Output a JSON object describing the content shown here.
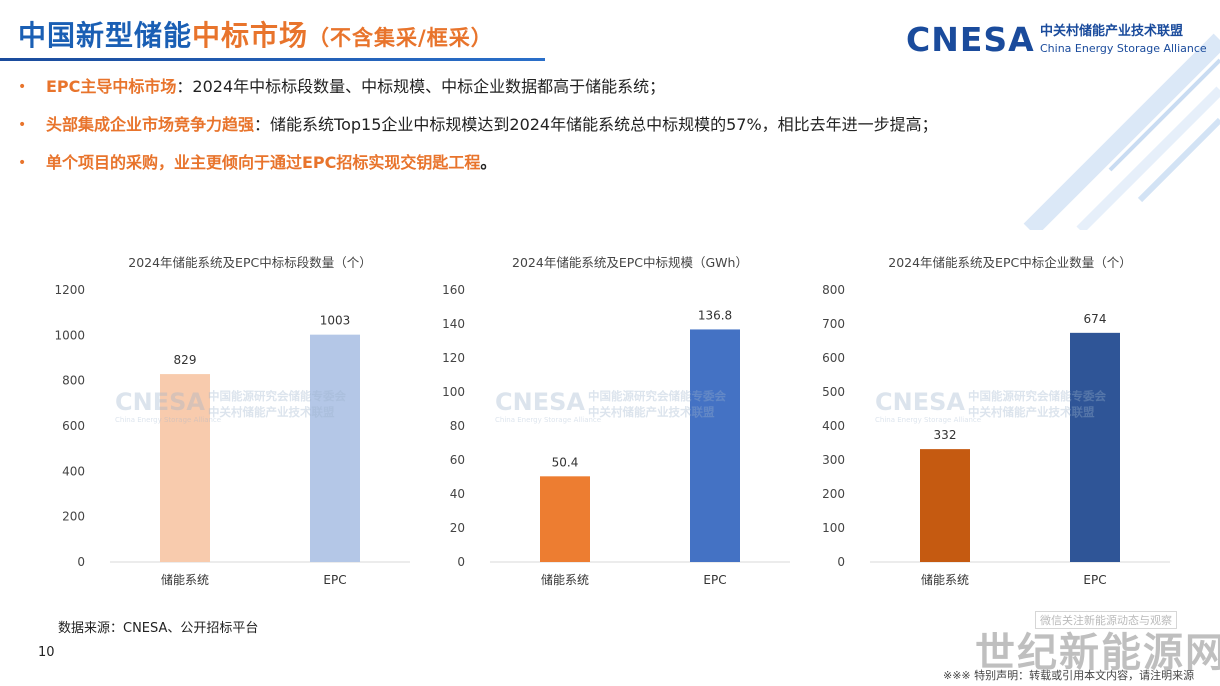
{
  "header": {
    "title_blue": "中国新型储能",
    "title_orange": "中标市场",
    "title_paren": "（不含集采/框采）"
  },
  "logo": {
    "main": "CNESA",
    "cn": "中关村储能产业技术联盟",
    "en": "China Energy Storage Alliance"
  },
  "bullets": [
    {
      "marker": "•",
      "highlight": "EPC主导中标市场",
      "sep": "：",
      "text": "2024年中标标段数量、中标规模、中标企业数据都高于储能系统；"
    },
    {
      "marker": "•",
      "highlight": "头部集成企业市场竞争力趋强",
      "sep": "：",
      "text": "储能系统Top15企业中标规模达到2024年储能系统总中标规模的57%，相比去年进一步提高；"
    },
    {
      "marker": "•",
      "highlight": "单个项目的采购，业主更倾向于通过EPC招标实现交钥匙工程",
      "sep": "",
      "text": "。"
    }
  ],
  "watermark": {
    "brand": "CNESA",
    "sub": "China Energy Storage Alliance",
    "cn1": "中国能源研究会储能专委会",
    "cn2": "中关村储能产业技术联盟"
  },
  "chart_data": [
    {
      "type": "bar",
      "title": "2024年储能系统及EPC中标标段数量（个）",
      "categories": [
        "储能系统",
        "EPC"
      ],
      "values": [
        829,
        1003
      ],
      "value_labels": [
        "829",
        "1003"
      ],
      "colors": [
        "#f8cbad",
        "#b4c7e7"
      ],
      "ylim": [
        0,
        1200
      ],
      "yticks": [
        0,
        200,
        400,
        600,
        800,
        1000,
        1200
      ],
      "grid": false,
      "xlabel": "",
      "ylabel": ""
    },
    {
      "type": "bar",
      "title": "2024年储能系统及EPC中标规模（GWh）",
      "categories": [
        "储能系统",
        "EPC"
      ],
      "values": [
        50.4,
        136.8
      ],
      "value_labels": [
        "50.4",
        "136.8"
      ],
      "colors": [
        "#ed7d31",
        "#4472c4"
      ],
      "ylim": [
        0,
        160
      ],
      "yticks": [
        0,
        20,
        40,
        60,
        80,
        100,
        120,
        140,
        160
      ],
      "grid": false,
      "xlabel": "",
      "ylabel": ""
    },
    {
      "type": "bar",
      "title": "2024年储能系统及EPC中标企业数量（个）",
      "categories": [
        "储能系统",
        "EPC"
      ],
      "values": [
        332,
        674
      ],
      "value_labels": [
        "332",
        "674"
      ],
      "colors": [
        "#c55a11",
        "#2f5597"
      ],
      "ylim": [
        0,
        800
      ],
      "yticks": [
        0,
        100,
        200,
        300,
        400,
        500,
        600,
        700,
        800
      ],
      "grid": false,
      "xlabel": "",
      "ylabel": ""
    }
  ],
  "footer": {
    "source": "数据来源：CNESA、公开招标平台",
    "page": "10",
    "stamp": "微信关注新能源动态与观察",
    "big_watermark": "世纪新能源网",
    "disclaimer": "※※※ 特别声明：转载或引用本文内容，请注明来源"
  }
}
